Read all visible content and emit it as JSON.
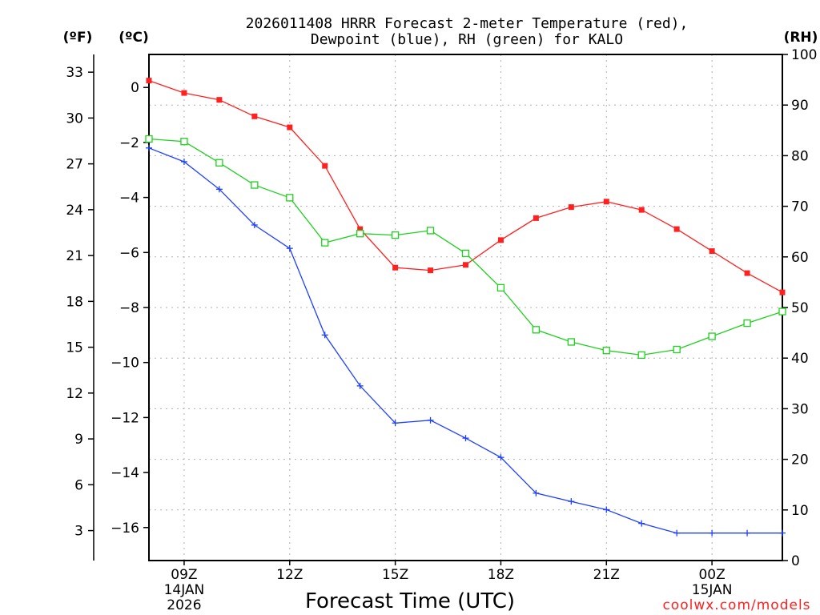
{
  "chart_data": {
    "type": "line",
    "title_line1": "2026011408 HRRR Forecast 2-meter Temperature (red),",
    "title_line2": "Dewpoint (blue), RH (green) for KALO",
    "xlabel": "Forecast Time (UTC)",
    "credit": "coolwx.com/models",
    "units": {
      "fahrenheit": "(ºF)",
      "celsius": "(ºC)",
      "rh": "(RH)"
    },
    "hours": [
      8,
      9,
      10,
      11,
      12,
      13,
      14,
      15,
      16,
      17,
      18,
      19,
      20,
      21,
      22,
      23,
      24,
      25,
      26
    ],
    "x_ticks": [
      {
        "hour": 9,
        "line1": "09Z",
        "line2": "14JAN",
        "line3": "2026"
      },
      {
        "hour": 12,
        "line1": "12Z",
        "line2": "",
        "line3": ""
      },
      {
        "hour": 15,
        "line1": "15Z",
        "line2": "",
        "line3": ""
      },
      {
        "hour": 18,
        "line1": "18Z",
        "line2": "",
        "line3": ""
      },
      {
        "hour": 21,
        "line1": "21Z",
        "line2": "",
        "line3": ""
      },
      {
        "hour": 24,
        "line1": "00Z",
        "line2": "15JAN",
        "line3": ""
      }
    ],
    "xlim": [
      8,
      26
    ],
    "ylim_celsius": [
      -17.2,
      1.2
    ],
    "ylim_rh": [
      0,
      100
    ],
    "celsius_ticks": [
      0,
      -2,
      -4,
      -6,
      -8,
      -10,
      -12,
      -14,
      -16
    ],
    "fahrenheit_ticks": [
      33,
      30,
      27,
      24,
      21,
      18,
      15,
      12,
      9,
      6,
      3
    ],
    "rh_ticks": [
      100,
      90,
      80,
      70,
      60,
      50,
      40,
      30,
      20,
      10,
      0
    ],
    "series": [
      {
        "name": "Temperature",
        "axis": "celsius",
        "color": "#ff2020",
        "marker": "filled-square",
        "values": [
          0.25,
          -0.2,
          -0.45,
          -1.05,
          -1.45,
          -2.85,
          -5.15,
          -6.55,
          -6.65,
          -6.45,
          -5.55,
          -4.75,
          -4.35,
          -4.15,
          -4.45,
          -5.15,
          -5.95,
          -6.75,
          -7.45
        ]
      },
      {
        "name": "Dewpoint",
        "axis": "celsius",
        "color": "#2040ff",
        "marker": "plus",
        "values": [
          -2.2,
          -2.7,
          -3.7,
          -5.0,
          -5.85,
          -9.0,
          -10.85,
          -12.2,
          -12.1,
          -12.75,
          -13.45,
          -14.75,
          -15.05,
          -15.35,
          -15.85,
          -16.2,
          -16.2,
          -16.2,
          -16.2
        ]
      },
      {
        "name": "RH",
        "axis": "rh",
        "color": "#20d020",
        "marker": "open-square",
        "values": [
          83.3,
          82.8,
          78.6,
          74.2,
          71.7,
          62.8,
          64.6,
          64.3,
          65.2,
          60.7,
          53.9,
          45.6,
          43.2,
          41.5,
          40.6,
          41.7,
          44.3,
          46.9,
          49.2
        ]
      }
    ]
  }
}
